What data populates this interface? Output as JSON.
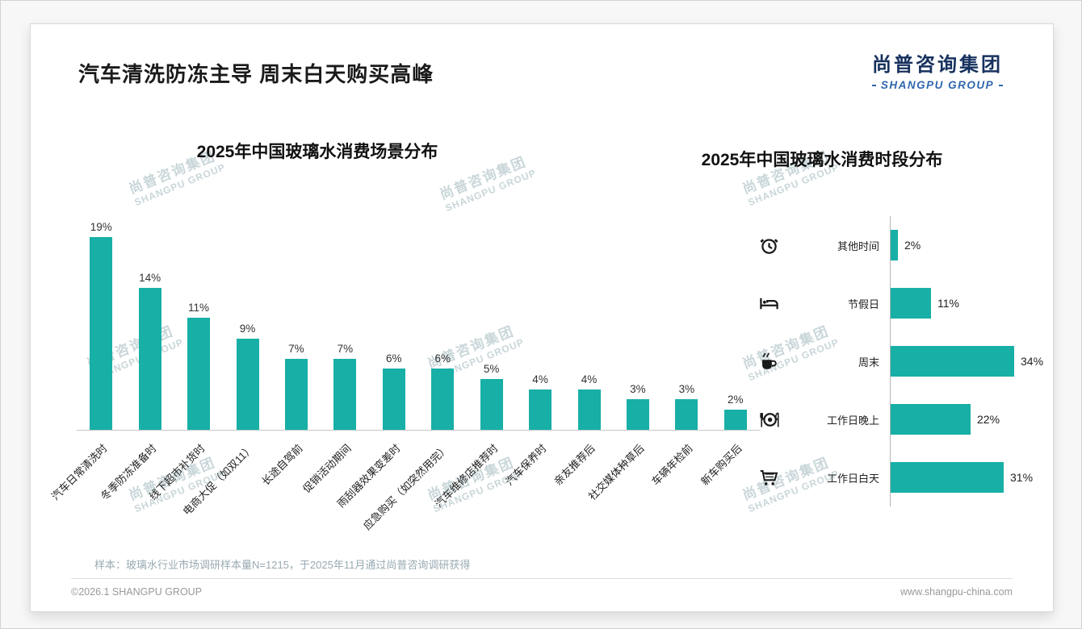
{
  "page": {
    "title": "汽车清洗防冻主导 周末白天购买高峰",
    "logo": {
      "cn": "尚普咨询集团",
      "en": "SHANGPU GROUP"
    },
    "watermark": {
      "cn": "尚普咨询集团",
      "en": "SHANGPU GROUP"
    },
    "footnote": "样本：玻璃水行业市场调研样本量N=1215，于2025年11月通过尚普咨询调研获得",
    "footer": {
      "left": "©2026.1 SHANGPU GROUP",
      "right": "www.shangpu-china.com"
    },
    "colors": {
      "accent": "#17AFA6",
      "logo_navy": "#16315E",
      "logo_blue": "#2F66AD"
    }
  },
  "chart_data": [
    {
      "type": "bar",
      "title": "2025年中国玻璃水消费场景分布",
      "categories": [
        "汽车日常清洗时",
        "冬季防冻准备时",
        "线下超市补货时",
        "电商大促（如双11）",
        "长途自驾前",
        "促销活动期间",
        "雨刮器效果变差时",
        "应急购买（如突然用完）",
        "汽车维修店推荐时",
        "汽车保养时",
        "亲友推荐后",
        "社交媒体种草后",
        "车辆年检前",
        "新车购买后"
      ],
      "values": [
        19,
        14,
        11,
        9,
        7,
        7,
        6,
        6,
        5,
        4,
        4,
        3,
        3,
        2
      ],
      "labels": [
        "19%",
        "14%",
        "11%",
        "9%",
        "7%",
        "7%",
        "6%",
        "6%",
        "5%",
        "4%",
        "4%",
        "3%",
        "3%",
        "2%"
      ],
      "unit": "%",
      "ylim": [
        0,
        20
      ],
      "grid": false,
      "bar_color": "#17AFA6"
    },
    {
      "type": "bar-horizontal",
      "title": "2025年中国玻璃水消费时段分布",
      "categories": [
        "其他时间",
        "节假日",
        "周末",
        "工作日晚上",
        "工作日白天"
      ],
      "values": [
        2,
        11,
        34,
        22,
        31
      ],
      "labels": [
        "2%",
        "11%",
        "34%",
        "22%",
        "31%"
      ],
      "icons": [
        "alarm-clock",
        "bed",
        "coffee",
        "dining-plate",
        "shopping-cart"
      ],
      "unit": "%",
      "xlim": [
        0,
        36
      ],
      "grid": false,
      "bar_color": "#17AFA6"
    }
  ]
}
